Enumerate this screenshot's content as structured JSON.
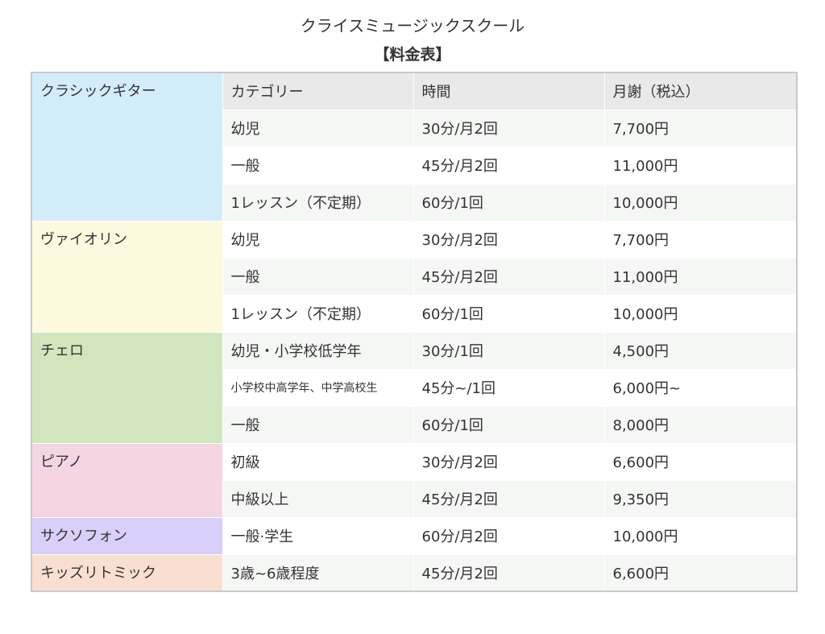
{
  "page": {
    "title": "クライスミュージックスクール",
    "subtitle": "【料金表】"
  },
  "table": {
    "headers": [
      "カテゴリー",
      "時間",
      "月謝（税込）"
    ],
    "instruments": [
      {
        "name": "クラシックギター",
        "color": "#d3ecfa",
        "rows": [
          [
            "幼児",
            "30分/月2回",
            "7,700円"
          ],
          [
            "一般",
            "45分/月2回",
            "11,000円"
          ],
          [
            "1レッスン（不定期）",
            "60分/1回",
            "10,000円"
          ]
        ]
      },
      {
        "name": "ヴァイオリン",
        "color": "#fcf9df",
        "rows": [
          [
            "幼児",
            "30分/月2回",
            "7,700円"
          ],
          [
            "一般",
            "45分/月2回",
            "11,000円"
          ],
          [
            "1レッスン（不定期）",
            "60分/1回",
            "10,000円"
          ]
        ]
      },
      {
        "name": "チェロ",
        "color": "#d2e6bd",
        "rows": [
          [
            "幼児・小学校低学年",
            "30分/1回",
            "4,500円"
          ],
          [
            "小学校中高学年、中学高校生",
            "45分~/1回",
            "6,000円~"
          ],
          [
            "一般",
            "60分/1回",
            "8,000円"
          ]
        ]
      },
      {
        "name": "ピアノ",
        "color": "#f4d5e1",
        "rows": [
          [
            "初級",
            "30分/月2回",
            "6,600円"
          ],
          [
            "中級以上",
            "45分/月2回",
            "9,350円"
          ]
        ]
      },
      {
        "name": "サクソフォン",
        "color": "#d9cff8",
        "rows": [
          [
            "一般·学生",
            "60分/月2回",
            "10,000円"
          ]
        ]
      },
      {
        "name": "キッズリトミック",
        "color": "#f9dfd1",
        "rows": [
          [
            "3歳~6歳程度",
            "45分/月2回",
            "6,600円"
          ]
        ]
      }
    ]
  }
}
